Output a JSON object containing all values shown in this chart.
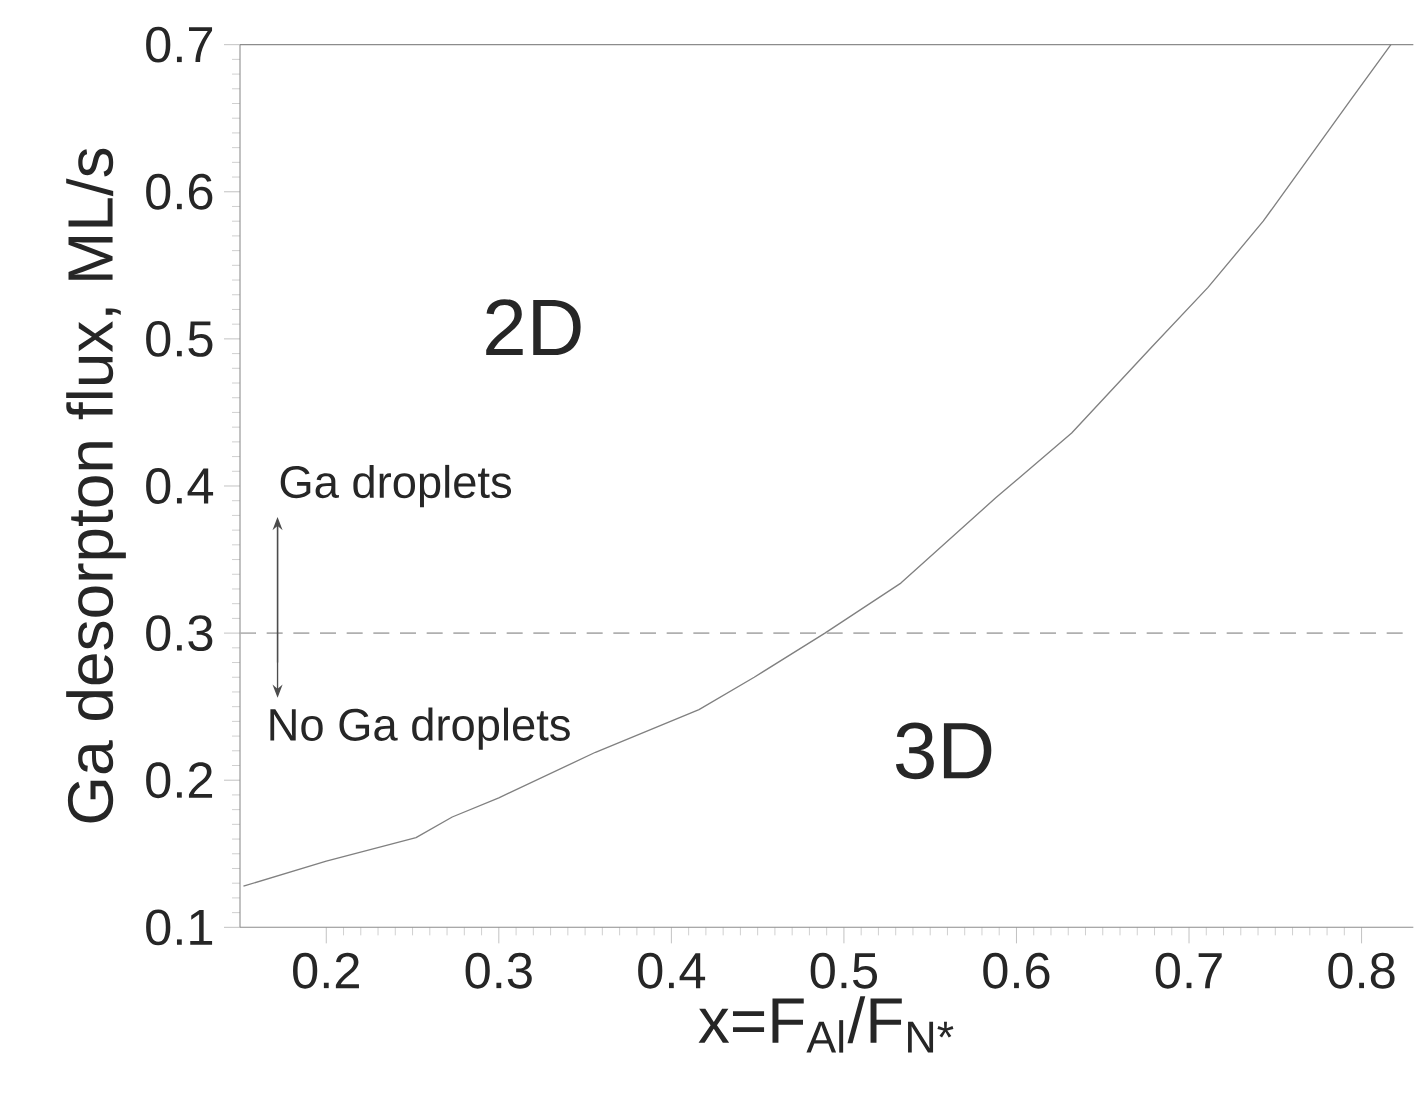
{
  "chart_data": {
    "type": "line",
    "xlabel": "x=F$_{Al}$/F$_{N*}$",
    "ylabel": "Ga desorpton flux, ML/s",
    "xlim": [
      0.15,
      0.83
    ],
    "ylim": [
      0.1,
      0.7
    ],
    "xticks": [
      0.2,
      0.3,
      0.4,
      0.5,
      0.6,
      0.7,
      0.8
    ],
    "yticks": [
      0.1,
      0.2,
      0.3,
      0.4,
      0.5,
      0.6,
      0.7
    ],
    "x": [
      0.152,
      0.2,
      0.252,
      0.273,
      0.3,
      0.356,
      0.416,
      0.448,
      0.489,
      0.533,
      0.588,
      0.632,
      0.678,
      0.711,
      0.743,
      0.794,
      0.817
    ],
    "series": [
      {
        "color": "#808080",
        "values": [
          0.128,
          0.145,
          0.161,
          0.175,
          0.188,
          0.219,
          0.248,
          0.27,
          0.3,
          0.334,
          0.392,
          0.436,
          0.494,
          0.535,
          0.58,
          0.663,
          0.7
        ]
      }
    ],
    "ref_lines": [
      {
        "axis": "y",
        "value": 0.3,
        "color": "#b0b0b0",
        "line_style": "dashed"
      }
    ],
    "annotations": [
      "2D",
      "3D",
      "Ga droplets",
      "No Ga droplets"
    ],
    "grid": false,
    "marker": "none",
    "line_style": "solid"
  }
}
